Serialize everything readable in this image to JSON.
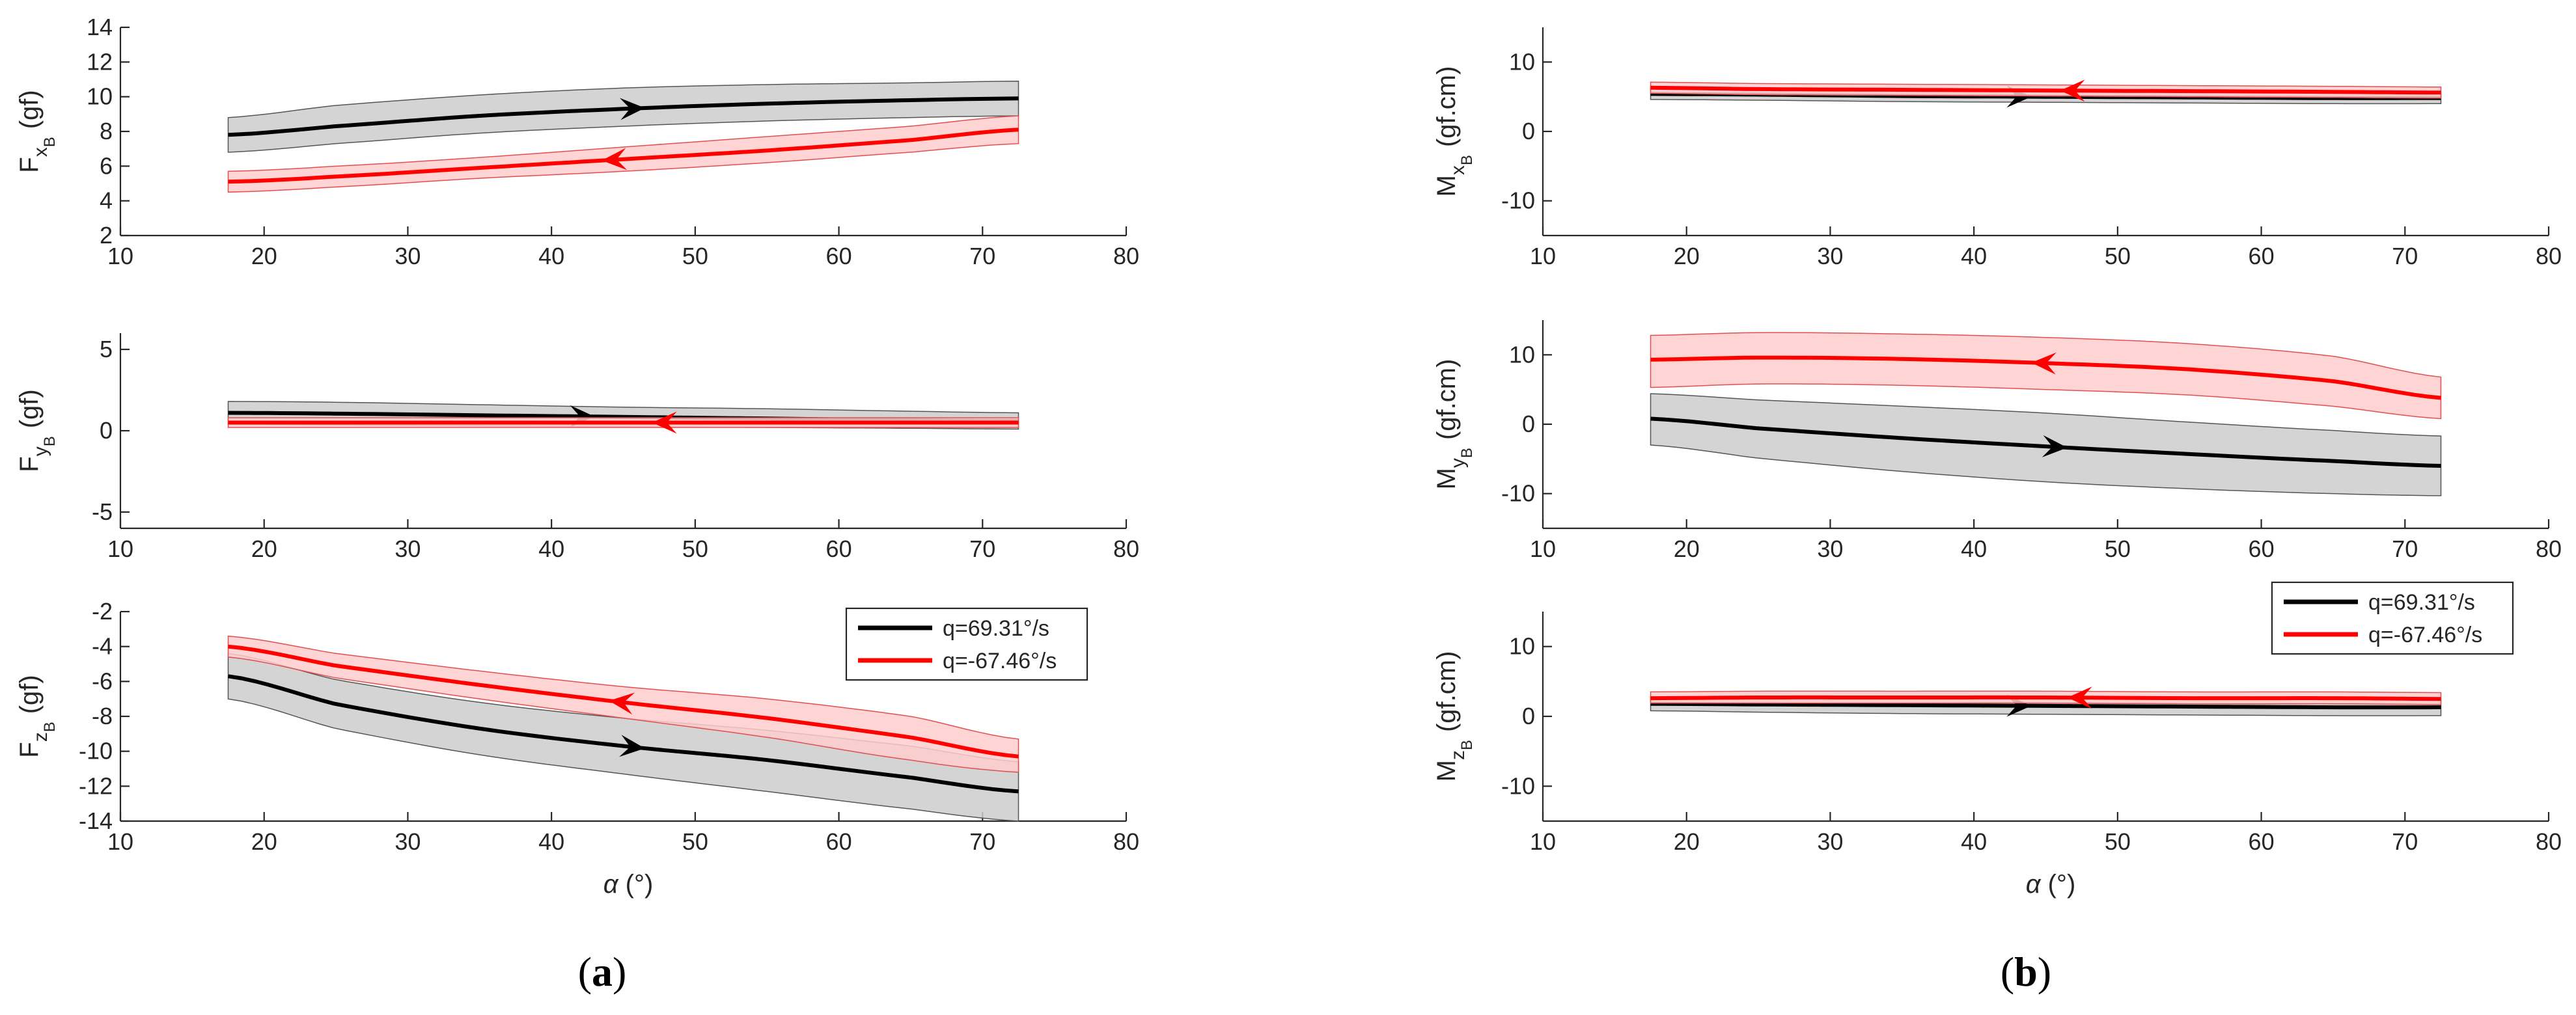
{
  "panels": [
    {
      "label_open": "(",
      "label_letter": "a",
      "label_close": ")",
      "xlabel_symbol": "α",
      "xlabel_unit": "(°)"
    },
    {
      "label_open": "(",
      "label_letter": "b",
      "label_close": ")",
      "xlabel_symbol": "α",
      "xlabel_unit": "(°)"
    }
  ],
  "legend": {
    "entries": [
      {
        "label": "q=69.31°/s",
        "color": "#000000"
      },
      {
        "label": "q=-67.46°/s",
        "color": "#ff0000"
      }
    ]
  },
  "colors": {
    "black_line": "#000000",
    "red_line": "#ff0000",
    "black_band": "#cccccc",
    "red_band": "#ffcccc",
    "axis": "#262626"
  },
  "chart_data": [
    {
      "type": "line",
      "id": "Fx",
      "ylabel_main": "F",
      "ylabel_sub": "x",
      "ylabel_subsub": "B",
      "ylabel_unit": "(gf)",
      "xlabel": "",
      "xlim": [
        10,
        80
      ],
      "ylim": [
        2,
        14
      ],
      "xticks": [
        10,
        20,
        30,
        40,
        50,
        60,
        70,
        80
      ],
      "yticks": [
        2,
        4,
        6,
        8,
        10,
        12,
        14
      ],
      "x": [
        17.5,
        25,
        35,
        45,
        55,
        65,
        72.5
      ],
      "series": [
        {
          "name": "q=69.31°/s",
          "color": "#000000",
          "band": "#cccccc",
          "values": [
            7.8,
            8.3,
            8.9,
            9.3,
            9.6,
            9.8,
            9.9
          ],
          "lower": [
            6.8,
            7.3,
            7.9,
            8.3,
            8.6,
            8.8,
            8.9
          ],
          "upper": [
            8.8,
            9.5,
            10.1,
            10.5,
            10.7,
            10.8,
            10.9
          ],
          "arrow_x": 46.5,
          "arrow_dir": 1
        },
        {
          "name": "q=-67.46°/s",
          "color": "#ff0000",
          "band": "#ffcccc",
          "values": [
            5.1,
            5.4,
            5.9,
            6.4,
            6.9,
            7.5,
            8.1
          ],
          "lower": [
            4.5,
            4.8,
            5.3,
            5.7,
            6.2,
            6.8,
            7.3
          ],
          "upper": [
            5.7,
            6.0,
            6.5,
            7.1,
            7.7,
            8.3,
            8.9
          ],
          "arrow_x": 43.5,
          "arrow_dir": -1
        }
      ]
    },
    {
      "type": "line",
      "id": "Fy",
      "ylabel_main": "F",
      "ylabel_sub": "y",
      "ylabel_subsub": "B",
      "ylabel_unit": "(gf)",
      "xlabel": "",
      "xlim": [
        10,
        80
      ],
      "ylim": [
        -6,
        6
      ],
      "xticks": [
        10,
        20,
        30,
        40,
        50,
        60,
        70,
        80
      ],
      "yticks": [
        -5,
        0,
        5
      ],
      "x": [
        17.5,
        25,
        35,
        45,
        55,
        65,
        72.5
      ],
      "series": [
        {
          "name": "q=69.31°/s",
          "color": "#000000",
          "band": "#cccccc",
          "values": [
            1.1,
            1.05,
            0.95,
            0.85,
            0.75,
            0.65,
            0.6
          ],
          "lower": [
            0.4,
            0.35,
            0.3,
            0.25,
            0.2,
            0.15,
            0.1
          ],
          "upper": [
            1.8,
            1.75,
            1.6,
            1.45,
            1.35,
            1.2,
            1.1
          ],
          "arrow_x": 43,
          "arrow_dir": 1
        },
        {
          "name": "q=-67.46°/s",
          "color": "#ff0000",
          "band": "#ffcccc",
          "values": [
            0.5,
            0.5,
            0.5,
            0.5,
            0.5,
            0.5,
            0.5
          ],
          "lower": [
            0.2,
            0.2,
            0.2,
            0.2,
            0.2,
            0.2,
            0.2
          ],
          "upper": [
            0.8,
            0.8,
            0.8,
            0.8,
            0.8,
            0.8,
            0.8
          ],
          "arrow_x": 47,
          "arrow_dir": -1
        }
      ]
    },
    {
      "type": "line",
      "id": "Fz",
      "ylabel_main": "F",
      "ylabel_sub": "z",
      "ylabel_subsub": "B",
      "ylabel_unit": "(gf)",
      "xlabel": "α (°)",
      "xlim": [
        10,
        80
      ],
      "ylim": [
        -14,
        -2
      ],
      "xticks": [
        10,
        20,
        30,
        40,
        50,
        60,
        70,
        80
      ],
      "yticks": [
        -14,
        -12,
        -10,
        -8,
        -6,
        -4,
        -2
      ],
      "x": [
        17.5,
        25,
        35,
        45,
        55,
        65,
        72.5
      ],
      "series": [
        {
          "name": "q=69.31°/s",
          "color": "#000000",
          "band": "#cccccc",
          "values": [
            -5.7,
            -7.3,
            -8.7,
            -9.7,
            -10.5,
            -11.5,
            -12.3
          ],
          "lower": [
            -7.0,
            -8.7,
            -10.2,
            -11.3,
            -12.3,
            -13.3,
            -14.0
          ],
          "upper": [
            -4.4,
            -5.9,
            -7.2,
            -8.1,
            -8.8,
            -9.7,
            -10.6
          ],
          "arrow_x": 46.5,
          "arrow_dir": 1
        },
        {
          "name": "q=-67.46°/s",
          "color": "#ff0000",
          "band": "#ffcccc",
          "values": [
            -4.0,
            -5.1,
            -6.2,
            -7.2,
            -8.1,
            -9.2,
            -10.3
          ],
          "lower": [
            -4.6,
            -5.8,
            -7.0,
            -8.1,
            -9.2,
            -10.5,
            -11.2
          ],
          "upper": [
            -3.4,
            -4.4,
            -5.4,
            -6.3,
            -7.0,
            -8.0,
            -9.3
          ],
          "arrow_x": 44,
          "arrow_dir": -1
        }
      ]
    },
    {
      "type": "line",
      "id": "Mx",
      "ylabel_main": "M",
      "ylabel_sub": "x",
      "ylabel_subsub": "B",
      "ylabel_unit": "(gf.cm)",
      "xlabel": "",
      "xlim": [
        10,
        80
      ],
      "ylim": [
        -15,
        15
      ],
      "xticks": [
        10,
        20,
        30,
        40,
        50,
        60,
        70,
        80
      ],
      "yticks": [
        -10,
        0,
        10
      ],
      "x": [
        17.5,
        25,
        35,
        45,
        55,
        65,
        72.5
      ],
      "series": [
        {
          "name": "q=69.31°/s",
          "color": "#000000",
          "band": "#cccccc",
          "values": [
            5.4,
            5.3,
            5.1,
            5.0,
            4.9,
            4.8,
            4.8
          ],
          "lower": [
            4.6,
            4.5,
            4.3,
            4.2,
            4.1,
            4.0,
            4.0
          ],
          "upper": [
            6.2,
            6.1,
            5.9,
            5.8,
            5.7,
            5.6,
            5.6
          ],
          "arrow_x": 44,
          "arrow_dir": 1
        },
        {
          "name": "q=-67.46°/s",
          "color": "#ff0000",
          "band": "#ffcccc",
          "values": [
            6.3,
            6.1,
            6.0,
            5.9,
            5.8,
            5.7,
            5.6
          ],
          "lower": [
            5.5,
            5.3,
            5.2,
            5.1,
            5.0,
            4.9,
            4.8
          ],
          "upper": [
            7.1,
            6.9,
            6.8,
            6.7,
            6.6,
            6.5,
            6.4
          ],
          "arrow_x": 46,
          "arrow_dir": -1
        }
      ]
    },
    {
      "type": "line",
      "id": "My",
      "ylabel_main": "M",
      "ylabel_sub": "y",
      "ylabel_subsub": "B",
      "ylabel_unit": "(gf.cm)",
      "xlabel": "",
      "xlim": [
        10,
        80
      ],
      "ylim": [
        -15,
        15
      ],
      "xticks": [
        10,
        20,
        30,
        40,
        50,
        60,
        70,
        80
      ],
      "yticks": [
        -10,
        0,
        10
      ],
      "x": [
        17.5,
        25,
        35,
        45,
        55,
        65,
        72.5
      ],
      "series": [
        {
          "name": "q=69.31°/s",
          "color": "#000000",
          "band": "#cccccc",
          "values": [
            0.8,
            -0.6,
            -2.0,
            -3.2,
            -4.3,
            -5.3,
            -6.0
          ],
          "lower": [
            -3.0,
            -4.9,
            -6.8,
            -8.3,
            -9.3,
            -10.0,
            -10.3
          ],
          "upper": [
            4.4,
            3.5,
            2.6,
            1.6,
            0.3,
            -0.9,
            -1.7
          ],
          "arrow_x": 46.5,
          "arrow_dir": 1
        },
        {
          "name": "q=-67.46°/s",
          "color": "#ff0000",
          "band": "#ffcccc",
          "values": [
            9.3,
            9.6,
            9.4,
            8.8,
            7.9,
            6.2,
            3.8
          ],
          "lower": [
            5.3,
            5.8,
            5.6,
            5.0,
            4.2,
            2.6,
            0.8
          ],
          "upper": [
            12.8,
            13.2,
            13.0,
            12.5,
            11.6,
            9.8,
            6.8
          ],
          "arrow_x": 44,
          "arrow_dir": -1
        }
      ]
    },
    {
      "type": "line",
      "id": "Mz",
      "ylabel_main": "M",
      "ylabel_sub": "z",
      "ylabel_subsub": "B",
      "ylabel_unit": "(gf.cm)",
      "xlabel": "α (°)",
      "xlim": [
        10,
        80
      ],
      "ylim": [
        -15,
        15
      ],
      "xticks": [
        10,
        20,
        30,
        40,
        50,
        60,
        70,
        80
      ],
      "yticks": [
        -10,
        0,
        10
      ],
      "x": [
        17.5,
        25,
        35,
        45,
        55,
        65,
        72.5
      ],
      "series": [
        {
          "name": "q=69.31°/s",
          "color": "#000000",
          "band": "#cccccc",
          "values": [
            1.8,
            1.7,
            1.6,
            1.5,
            1.4,
            1.3,
            1.3
          ],
          "lower": [
            0.8,
            0.6,
            0.4,
            0.3,
            0.2,
            0.1,
            0.1
          ],
          "upper": [
            2.8,
            2.8,
            2.7,
            2.6,
            2.6,
            2.5,
            2.5
          ],
          "arrow_x": 44,
          "arrow_dir": 1
        },
        {
          "name": "q=-67.46°/s",
          "color": "#ff0000",
          "band": "#ffcccc",
          "values": [
            2.6,
            2.7,
            2.7,
            2.7,
            2.6,
            2.6,
            2.5
          ],
          "lower": [
            1.9,
            1.9,
            1.9,
            1.9,
            1.8,
            1.8,
            1.7
          ],
          "upper": [
            3.5,
            3.6,
            3.6,
            3.6,
            3.5,
            3.5,
            3.4
          ],
          "arrow_x": 46.5,
          "arrow_dir": -1
        }
      ]
    }
  ]
}
